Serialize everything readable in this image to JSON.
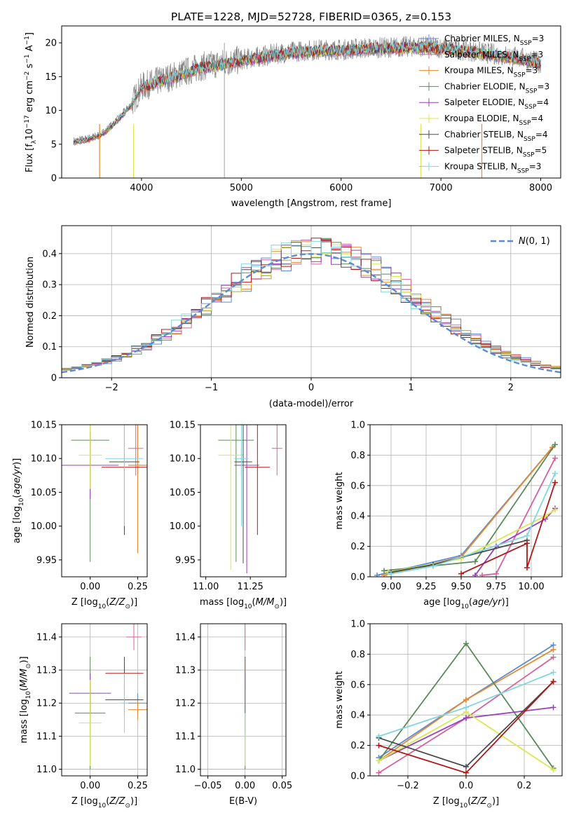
{
  "title": "PLATE=1228, MJD=52728, FIBERID=0365, z=0.153",
  "palette": {
    "chabrier_miles": "#5b8bd6",
    "salpeter_miles": "#d8609b",
    "kroupa_miles": "#e6892b",
    "chabrier_elodie": "#5a8a5a",
    "salpeter_elodie": "#9a3fbf",
    "kroupa_elodie": "#d9e84f",
    "chabrier_stelib": "#4a4a4a",
    "salpeter_stelib": "#b01818",
    "kroupa_stelib": "#7fd6dc",
    "data": "#888888"
  },
  "chart_data": [
    {
      "type": "line",
      "panel": "spectrum",
      "xlabel": "wavelength [Angstrom, rest frame]",
      "ylabel": "Flux [f_λ10^-17 erg cm^-2 s^-1 A^-1]",
      "xlim": [
        3200,
        8200
      ],
      "ylim": [
        0,
        22.5
      ],
      "xticks": [
        4000,
        5000,
        6000,
        7000,
        8000
      ],
      "yticks": [
        0,
        5,
        10,
        15,
        20
      ],
      "continuum": {
        "x": [
          3320,
          3450,
          3600,
          3750,
          3900,
          4000,
          4200,
          4400,
          4600,
          4800,
          5000,
          5200,
          5400,
          5600,
          5800,
          6000,
          6200,
          6400,
          6600,
          6800,
          7000,
          7200,
          7400,
          7600,
          7800,
          8000
        ],
        "y": [
          5.5,
          5.8,
          6.5,
          8.5,
          11.0,
          13.5,
          14.5,
          15.5,
          16.5,
          17.0,
          17.5,
          18.0,
          18.5,
          18.8,
          19.0,
          19.0,
          19.2,
          19.3,
          19.4,
          19.5,
          19.3,
          19.0,
          18.6,
          18.2,
          17.8,
          17.0
        ]
      },
      "legend": [
        {
          "label": "Chabrier MILES, N_SSP=3",
          "key": "chabrier_miles"
        },
        {
          "label": "Salpeter MILES, N_SSP=3",
          "key": "salpeter_miles"
        },
        {
          "label": "Kroupa MILES, N_SSP=3",
          "key": "kroupa_miles"
        },
        {
          "label": "Chabrier ELODIE, N_SSP=3",
          "key": "chabrier_elodie"
        },
        {
          "label": "Salpeter ELODIE, N_SSP=4",
          "key": "salpeter_elodie"
        },
        {
          "label": "Kroupa ELODIE, N_SSP=4",
          "key": "kroupa_elodie"
        },
        {
          "label": "Chabrier STELIB, N_SSP=4",
          "key": "chabrier_stelib"
        },
        {
          "label": "Salpeter STELIB, N_SSP=5",
          "key": "salpeter_stelib"
        },
        {
          "label": "Kroupa STELIB, N_SSP=3",
          "key": "kroupa_stelib"
        }
      ],
      "legend_position": "right"
    },
    {
      "type": "histogram",
      "panel": "residuals",
      "xlabel": "(data-model)/error",
      "ylabel": "Normed distribution",
      "xlim": [
        -2.5,
        2.5
      ],
      "ylim": [
        0,
        0.49
      ],
      "xticks": [
        -2,
        -1,
        0,
        1,
        2
      ],
      "yticks": [
        0.0,
        0.1,
        0.2,
        0.3,
        0.4
      ],
      "bin_width": 0.1,
      "reference_curve": {
        "label": "N(0,1)",
        "mean": 0,
        "sigma": 1,
        "style": "dashed"
      },
      "legend_position": "upper right",
      "grid": true
    },
    {
      "type": "errorbar",
      "panel": "age_vs_Z",
      "xlabel": "Z [log10(Z/Z⊙)]",
      "ylabel": "age [log10(age/yr)]",
      "xlim": [
        -0.15,
        0.3
      ],
      "ylim": [
        9.925,
        10.15
      ],
      "xticks": [
        0.0,
        0.25
      ],
      "xticklabels": [
        "0.00",
        "0.25"
      ],
      "yticks": [
        9.95,
        10.0,
        10.05,
        10.1,
        10.15
      ],
      "yticklabels": [
        "9.95",
        "10.00",
        "10.05",
        "10.10",
        "10.15"
      ],
      "points": [
        {
          "key": "chabrier_miles",
          "x": 0.25,
          "y": 10.09,
          "xerr": 0.05,
          "yerr": 0.13
        },
        {
          "key": "salpeter_miles",
          "x": 0.24,
          "y": 10.115,
          "xerr": 0.04,
          "yerr": 0.04
        },
        {
          "key": "kroupa_miles",
          "x": 0.25,
          "y": 10.09,
          "xerr": 0.05,
          "yerr": 0.13
        },
        {
          "key": "chabrier_elodie",
          "x": 0.0,
          "y": 10.127,
          "xerr": 0.1,
          "yerr": 0.18
        },
        {
          "key": "salpeter_elodie",
          "x": 0.0,
          "y": 10.09,
          "xerr": 0.15,
          "yerr": 0.05
        },
        {
          "key": "kroupa_elodie",
          "x": 0.0,
          "y": 10.105,
          "xerr": 0.06,
          "yerr": 0.05
        },
        {
          "key": "chabrier_stelib",
          "x": 0.18,
          "y": 10.095,
          "xerr": 0.08,
          "yerr": 0.1
        },
        {
          "key": "salpeter_stelib",
          "x": 0.18,
          "y": 10.087,
          "xerr": 0.12,
          "yerr": 0.1
        },
        {
          "key": "kroupa_stelib",
          "x": 0.18,
          "y": 10.1,
          "xerr": 0.1,
          "yerr": 0.1
        }
      ]
    },
    {
      "type": "errorbar",
      "panel": "age_vs_mass",
      "xlabel": "mass [log10(M/M⊙)]",
      "ylabel": "",
      "xlim": [
        10.97,
        11.45
      ],
      "ylim": [
        9.925,
        10.15
      ],
      "xticks": [
        11.0,
        11.25
      ],
      "xticklabels": [
        "11.00",
        "11.25"
      ],
      "yticks": [
        9.95,
        10.0,
        10.05,
        10.1,
        10.15
      ],
      "yticklabels": [
        "9.95",
        "10.00",
        "10.05",
        "10.10",
        "10.15"
      ],
      "points": [
        {
          "key": "chabrier_miles",
          "x": 11.2,
          "y": 10.095,
          "xerr": 0.03,
          "yerr": 0.02
        },
        {
          "key": "salpeter_miles",
          "x": 11.4,
          "y": 10.115,
          "xerr": 0.03,
          "yerr": 0.04
        },
        {
          "key": "kroupa_miles",
          "x": 11.2,
          "y": 10.095,
          "xerr": 0.03,
          "yerr": 0.02
        },
        {
          "key": "chabrier_elodie",
          "x": 11.17,
          "y": 10.127,
          "xerr": 0.1,
          "yerr": 0.18
        },
        {
          "key": "salpeter_elodie",
          "x": 11.23,
          "y": 10.09,
          "xerr": 0.07,
          "yerr": 0.16
        },
        {
          "key": "kroupa_elodie",
          "x": 11.14,
          "y": 10.105,
          "xerr": 0.07,
          "yerr": 0.17
        },
        {
          "key": "chabrier_stelib",
          "x": 11.21,
          "y": 10.095,
          "xerr": 0.05,
          "yerr": 0.15
        },
        {
          "key": "salpeter_stelib",
          "x": 11.29,
          "y": 10.087,
          "xerr": 0.07,
          "yerr": 0.1
        },
        {
          "key": "kroupa_stelib",
          "x": 11.2,
          "y": 10.1,
          "xerr": 0.04,
          "yerr": 0.1
        }
      ]
    },
    {
      "type": "line",
      "panel": "weight_vs_age",
      "xlabel": "age [log10(age/yr)]",
      "ylabel": "mass weight",
      "xlim": [
        8.85,
        10.22
      ],
      "ylim": [
        0,
        1.0
      ],
      "xticks": [
        9.0,
        9.25,
        9.5,
        9.75,
        10.0
      ],
      "xticklabels": [
        "9.00",
        "9.25",
        "9.50",
        "9.75",
        "10.00"
      ],
      "yticks": [
        0,
        0.2,
        0.4,
        0.6,
        0.8,
        1.0
      ],
      "yticklabels": [
        "0.0",
        "0.2",
        "0.4",
        "0.6",
        "0.8",
        "1.0"
      ],
      "grid": true,
      "series": [
        {
          "key": "chabrier_miles",
          "x": [
            8.9,
            9.5,
            10.15
          ],
          "y": [
            0.01,
            0.14,
            0.85
          ]
        },
        {
          "key": "kroupa_miles",
          "x": [
            8.95,
            9.5,
            10.15
          ],
          "y": [
            0.01,
            0.13,
            0.85
          ]
        },
        {
          "key": "salpeter_miles",
          "x": [
            9.65,
            9.75,
            10.17
          ],
          "y": [
            0.01,
            0.02,
            0.78
          ]
        },
        {
          "key": "chabrier_elodie",
          "x": [
            8.95,
            9.6,
            10.17
          ],
          "y": [
            0.04,
            0.1,
            0.87
          ]
        },
        {
          "key": "salpeter_elodie",
          "x": [
            9.6,
            9.75,
            10.1,
            10.17
          ],
          "y": [
            0.01,
            0.2,
            0.38,
            0.45
          ]
        },
        {
          "key": "kroupa_elodie",
          "x": [
            8.98,
            9.5,
            10.1,
            10.17
          ],
          "y": [
            0.03,
            0.12,
            0.4,
            0.44
          ]
        },
        {
          "key": "chabrier_stelib",
          "x": [
            9.0,
            9.3,
            9.97
          ],
          "y": [
            0.03,
            0.08,
            0.24
          ]
        },
        {
          "key": "salpeter_stelib",
          "x": [
            9.5,
            9.97,
            9.97,
            10.17
          ],
          "y": [
            0.02,
            0.22,
            0.06,
            0.62
          ]
        },
        {
          "key": "kroupa_stelib",
          "x": [
            9.0,
            9.3,
            9.97,
            10.17
          ],
          "y": [
            0.02,
            0.07,
            0.27,
            0.68
          ]
        }
      ]
    },
    {
      "type": "errorbar",
      "panel": "mass_vs_Z",
      "xlabel": "Z [log10(Z/Z⊙)]",
      "ylabel": "mass [log10(M/M⊙)]",
      "xlim": [
        -0.15,
        0.3
      ],
      "ylim": [
        10.98,
        11.44
      ],
      "xticks": [
        0.0,
        0.25
      ],
      "xticklabels": [
        "0.00",
        "0.25"
      ],
      "yticks": [
        11.0,
        11.1,
        11.2,
        11.3,
        11.4
      ],
      "yticklabels": [
        "11.0",
        "11.1",
        "11.2",
        "11.3",
        "11.4"
      ],
      "grid": true,
      "points": [
        {
          "key": "chabrier_miles",
          "x": 0.25,
          "y": 11.2,
          "xerr": 0.05,
          "yerr": 0.03
        },
        {
          "key": "salpeter_miles",
          "x": 0.23,
          "y": 11.4,
          "xerr": 0.04,
          "yerr": 0.04
        },
        {
          "key": "kroupa_miles",
          "x": 0.25,
          "y": 11.18,
          "xerr": 0.05,
          "yerr": 0.03
        },
        {
          "key": "chabrier_elodie",
          "x": 0.0,
          "y": 11.17,
          "xerr": 0.08,
          "yerr": 0.17
        },
        {
          "key": "salpeter_elodie",
          "x": 0.0,
          "y": 11.23,
          "xerr": 0.11,
          "yerr": 0.06
        },
        {
          "key": "kroupa_elodie",
          "x": 0.0,
          "y": 11.14,
          "xerr": 0.06,
          "yerr": 0.13
        },
        {
          "key": "chabrier_stelib",
          "x": 0.18,
          "y": 11.21,
          "xerr": 0.1,
          "yerr": 0.05
        },
        {
          "key": "salpeter_stelib",
          "x": 0.18,
          "y": 11.29,
          "xerr": 0.1,
          "yerr": 0.05
        },
        {
          "key": "kroupa_stelib",
          "x": 0.18,
          "y": 11.2,
          "xerr": 0.02,
          "yerr": 0.09
        }
      ]
    },
    {
      "type": "errorbar",
      "panel": "mass_vs_EBV",
      "xlabel": "E(B-V)",
      "ylabel": "",
      "xlim": [
        -0.06,
        0.055
      ],
      "ylim": [
        10.98,
        11.44
      ],
      "xticks": [
        -0.05,
        0.0,
        0.05
      ],
      "xticklabels": [
        "−0.05",
        "0.00",
        "0.05"
      ],
      "yticks": [
        11.0,
        11.1,
        11.2,
        11.3,
        11.4
      ],
      "yticklabels": [
        "11.0",
        "11.1",
        "11.2",
        "11.3",
        "11.4"
      ],
      "grid": true,
      "points": [
        {
          "key": "salpeter_miles",
          "x": 0.0,
          "y": 11.4,
          "xerr": 0,
          "yerr": 0.04
        },
        {
          "key": "salpeter_stelib",
          "x": 0.0,
          "y": 11.29,
          "xerr": 0,
          "yerr": 0.05
        },
        {
          "key": "chabrier_elodie",
          "x": 0.0,
          "y": 11.17,
          "xerr": 0,
          "yerr": 0.17
        },
        {
          "key": "kroupa_elodie",
          "x": 0.0,
          "y": 11.14,
          "xerr": 0,
          "yerr": 0.13
        },
        {
          "key": "kroupa_stelib",
          "x": 0.0,
          "y": 11.2,
          "xerr": 0,
          "yerr": 0.09
        },
        {
          "key": "salpeter_elodie",
          "x": 0.0,
          "y": 11.23,
          "xerr": 0,
          "yerr": 0.06
        }
      ]
    },
    {
      "type": "line",
      "panel": "weight_vs_Z",
      "xlabel": "Z [log10(Z/Z⊙)]",
      "ylabel": "mass weight",
      "xlim": [
        -0.33,
        0.33
      ],
      "ylim": [
        0,
        1.0
      ],
      "xticks": [
        -0.2,
        0.0,
        0.2
      ],
      "xticklabels": [
        "−0.2",
        "0.0",
        "0.2"
      ],
      "yticks": [
        0,
        0.2,
        0.4,
        0.6,
        0.8,
        1.0
      ],
      "yticklabels": [
        "0.0",
        "0.2",
        "0.4",
        "0.6",
        "0.8",
        "1.0"
      ],
      "grid": true,
      "series": [
        {
          "key": "chabrier_miles",
          "x": [
            -0.3,
            0.0,
            0.3
          ],
          "y": [
            0.12,
            0.5,
            0.86
          ]
        },
        {
          "key": "kroupa_miles",
          "x": [
            -0.3,
            0.0,
            0.3
          ],
          "y": [
            0.1,
            0.5,
            0.83
          ]
        },
        {
          "key": "salpeter_miles",
          "x": [
            -0.3,
            0.0,
            0.3
          ],
          "y": [
            0.02,
            0.38,
            0.78
          ]
        },
        {
          "key": "chabrier_elodie",
          "x": [
            -0.3,
            0.0,
            0.3
          ],
          "y": [
            0.1,
            0.87,
            0.05
          ]
        },
        {
          "key": "salpeter_elodie",
          "x": [
            -0.3,
            0.0,
            0.3
          ],
          "y": [
            0.1,
            0.38,
            0.45
          ]
        },
        {
          "key": "kroupa_elodie",
          "x": [
            -0.3,
            0.0,
            0.3
          ],
          "y": [
            0.1,
            0.42,
            0.04
          ]
        },
        {
          "key": "chabrier_stelib",
          "x": [
            -0.3,
            0.0,
            0.3
          ],
          "y": [
            0.25,
            0.06,
            0.62
          ]
        },
        {
          "key": "salpeter_stelib",
          "x": [
            -0.3,
            0.0,
            0.3
          ],
          "y": [
            0.2,
            0.02,
            0.62
          ]
        },
        {
          "key": "kroupa_stelib",
          "x": [
            -0.3,
            0.0,
            0.3
          ],
          "y": [
            0.26,
            0.45,
            0.68
          ]
        }
      ]
    }
  ]
}
